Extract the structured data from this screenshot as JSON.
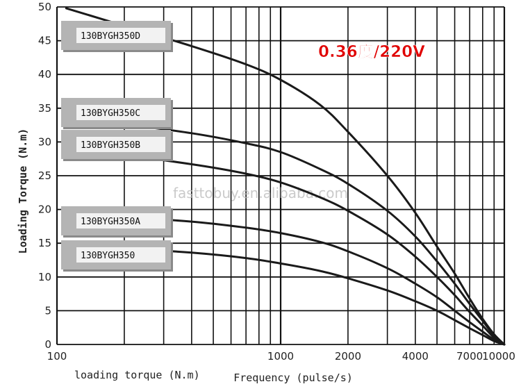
{
  "chart_data": {
    "type": "line",
    "x_scale": "log",
    "xlim": [
      100,
      10000
    ],
    "ylim": [
      0,
      50
    ],
    "y_ticks": [
      0,
      5,
      10,
      15,
      20,
      25,
      30,
      35,
      40,
      45,
      50
    ],
    "x_tick_labels": [
      {
        "x": 100,
        "label": "100"
      },
      {
        "x": 1000,
        "label": "1000"
      },
      {
        "x": 2000,
        "label": "2000"
      },
      {
        "x": 4000,
        "label": "4000"
      },
      {
        "x": 7000,
        "label": "7000"
      },
      {
        "x": 10000,
        "label": "10000"
      }
    ],
    "ylabel": "Loading Torque (N.m)",
    "xlabel": "Frequency (pulse/s)",
    "bottom_left_label": "loading torque (N.m)",
    "annotation": "0.36度/220V",
    "watermark": "fasttobuy.en.alibaba.com",
    "grid": true,
    "series": [
      {
        "name": "130BYGH350D",
        "x": [
          110,
          200,
          400,
          700,
          1000,
          1500,
          2000,
          3000,
          4000,
          5000,
          6000,
          7000,
          8000,
          9000,
          10000
        ],
        "y": [
          49.8,
          47.2,
          44.2,
          41.5,
          39.2,
          35.5,
          31.5,
          25.0,
          19.5,
          14.5,
          10.5,
          6.8,
          3.8,
          1.5,
          0.0
        ]
      },
      {
        "name": "130BYGH350C",
        "x": [
          110,
          200,
          400,
          700,
          1000,
          1500,
          2000,
          3000,
          4000,
          5000,
          6000,
          7000,
          8000,
          9000,
          10000
        ],
        "y": [
          33.5,
          32.6,
          31.3,
          29.8,
          28.5,
          26.0,
          23.8,
          19.8,
          16.0,
          12.3,
          9.0,
          6.0,
          3.5,
          1.3,
          0.0
        ]
      },
      {
        "name": "130BYGH350B",
        "x": [
          110,
          200,
          400,
          700,
          1000,
          1500,
          2000,
          3000,
          4000,
          5000,
          6000,
          7000,
          8000,
          9000,
          10000
        ],
        "y": [
          28.8,
          28.0,
          26.7,
          25.3,
          24.0,
          21.8,
          19.8,
          16.3,
          13.0,
          10.0,
          7.3,
          4.8,
          2.8,
          1.0,
          0.0
        ]
      },
      {
        "name": "130BYGH350A",
        "x": [
          110,
          200,
          400,
          700,
          1000,
          1500,
          2000,
          3000,
          4000,
          5000,
          6000,
          7000,
          8000,
          9000,
          10000
        ],
        "y": [
          19.0,
          18.8,
          18.2,
          17.3,
          16.5,
          15.2,
          13.8,
          11.3,
          9.0,
          7.0,
          5.0,
          3.3,
          1.9,
          0.7,
          0.0
        ]
      },
      {
        "name": "130BYGH350",
        "x": [
          110,
          200,
          400,
          700,
          1000,
          1500,
          2000,
          3000,
          4000,
          5000,
          6000,
          7000,
          8000,
          9000,
          10000
        ],
        "y": [
          14.5,
          14.2,
          13.6,
          12.8,
          12.0,
          10.9,
          9.8,
          8.0,
          6.4,
          5.0,
          3.6,
          2.4,
          1.4,
          0.5,
          0.0
        ]
      }
    ]
  }
}
